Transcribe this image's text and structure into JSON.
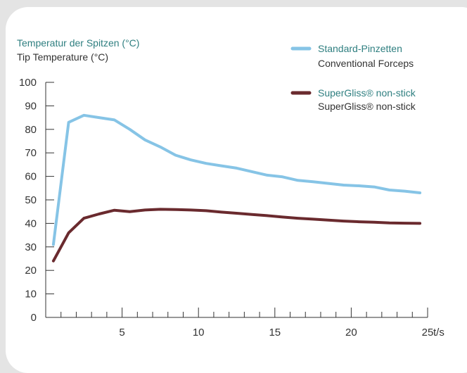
{
  "chart_data": {
    "type": "line",
    "title_de": "Temperatur der Spitzen (°C)",
    "title_en": "Tip Temperature (°C)",
    "xlabel": "t/s",
    "ylabel": "",
    "xlim": [
      0,
      25
    ],
    "ylim": [
      0,
      100
    ],
    "x_ticks": [
      5,
      10,
      15,
      20,
      25
    ],
    "x_tick_labels": [
      "5",
      "10",
      "15",
      "20",
      "25"
    ],
    "y_ticks": [
      0,
      10,
      20,
      30,
      40,
      50,
      60,
      70,
      80,
      90,
      100
    ],
    "y_tick_labels": [
      "0",
      "10",
      "20",
      "30",
      "40",
      "50",
      "60",
      "70",
      "80",
      "90",
      "100"
    ],
    "grid": false,
    "legend_placement": "top-right",
    "series": [
      {
        "name": "Standard-Pinzetten",
        "name_en": "Conventional Forceps",
        "color": "#86c4e6",
        "x": [
          0.5,
          1.5,
          2.5,
          3.5,
          4.5,
          5.5,
          6.5,
          7.5,
          8.5,
          9.5,
          10.5,
          11.5,
          12.5,
          13.5,
          14.5,
          15.5,
          16.5,
          17.5,
          18.5,
          19.5,
          20.5,
          21.5,
          22.5,
          23.5,
          24.5
        ],
        "values": [
          31,
          83,
          86,
          85,
          84,
          80,
          75.5,
          72.5,
          69,
          67,
          65.5,
          64.5,
          63.5,
          62,
          60.5,
          59.8,
          58.3,
          57.7,
          57,
          56.3,
          56,
          55.5,
          54.2,
          53.7,
          53
        ]
      },
      {
        "name": "SuperGliss® non-stick",
        "name_en": "SuperGliss® non-stick",
        "color": "#6a2a2e",
        "x": [
          0.5,
          1.5,
          2.5,
          3.5,
          4.5,
          5.5,
          6.5,
          7.5,
          8.5,
          9.5,
          10.5,
          11.5,
          12.5,
          13.5,
          14.5,
          15.5,
          16.5,
          17.5,
          18.5,
          19.5,
          20.5,
          21.5,
          22.5,
          23.5,
          24.5
        ],
        "values": [
          24,
          36,
          42.2,
          44,
          45.6,
          45,
          45.7,
          46,
          45.9,
          45.7,
          45.4,
          44.8,
          44.3,
          43.8,
          43.3,
          42.7,
          42.2,
          41.8,
          41.4,
          41,
          40.7,
          40.5,
          40.2,
          40.1,
          40
        ]
      }
    ]
  }
}
